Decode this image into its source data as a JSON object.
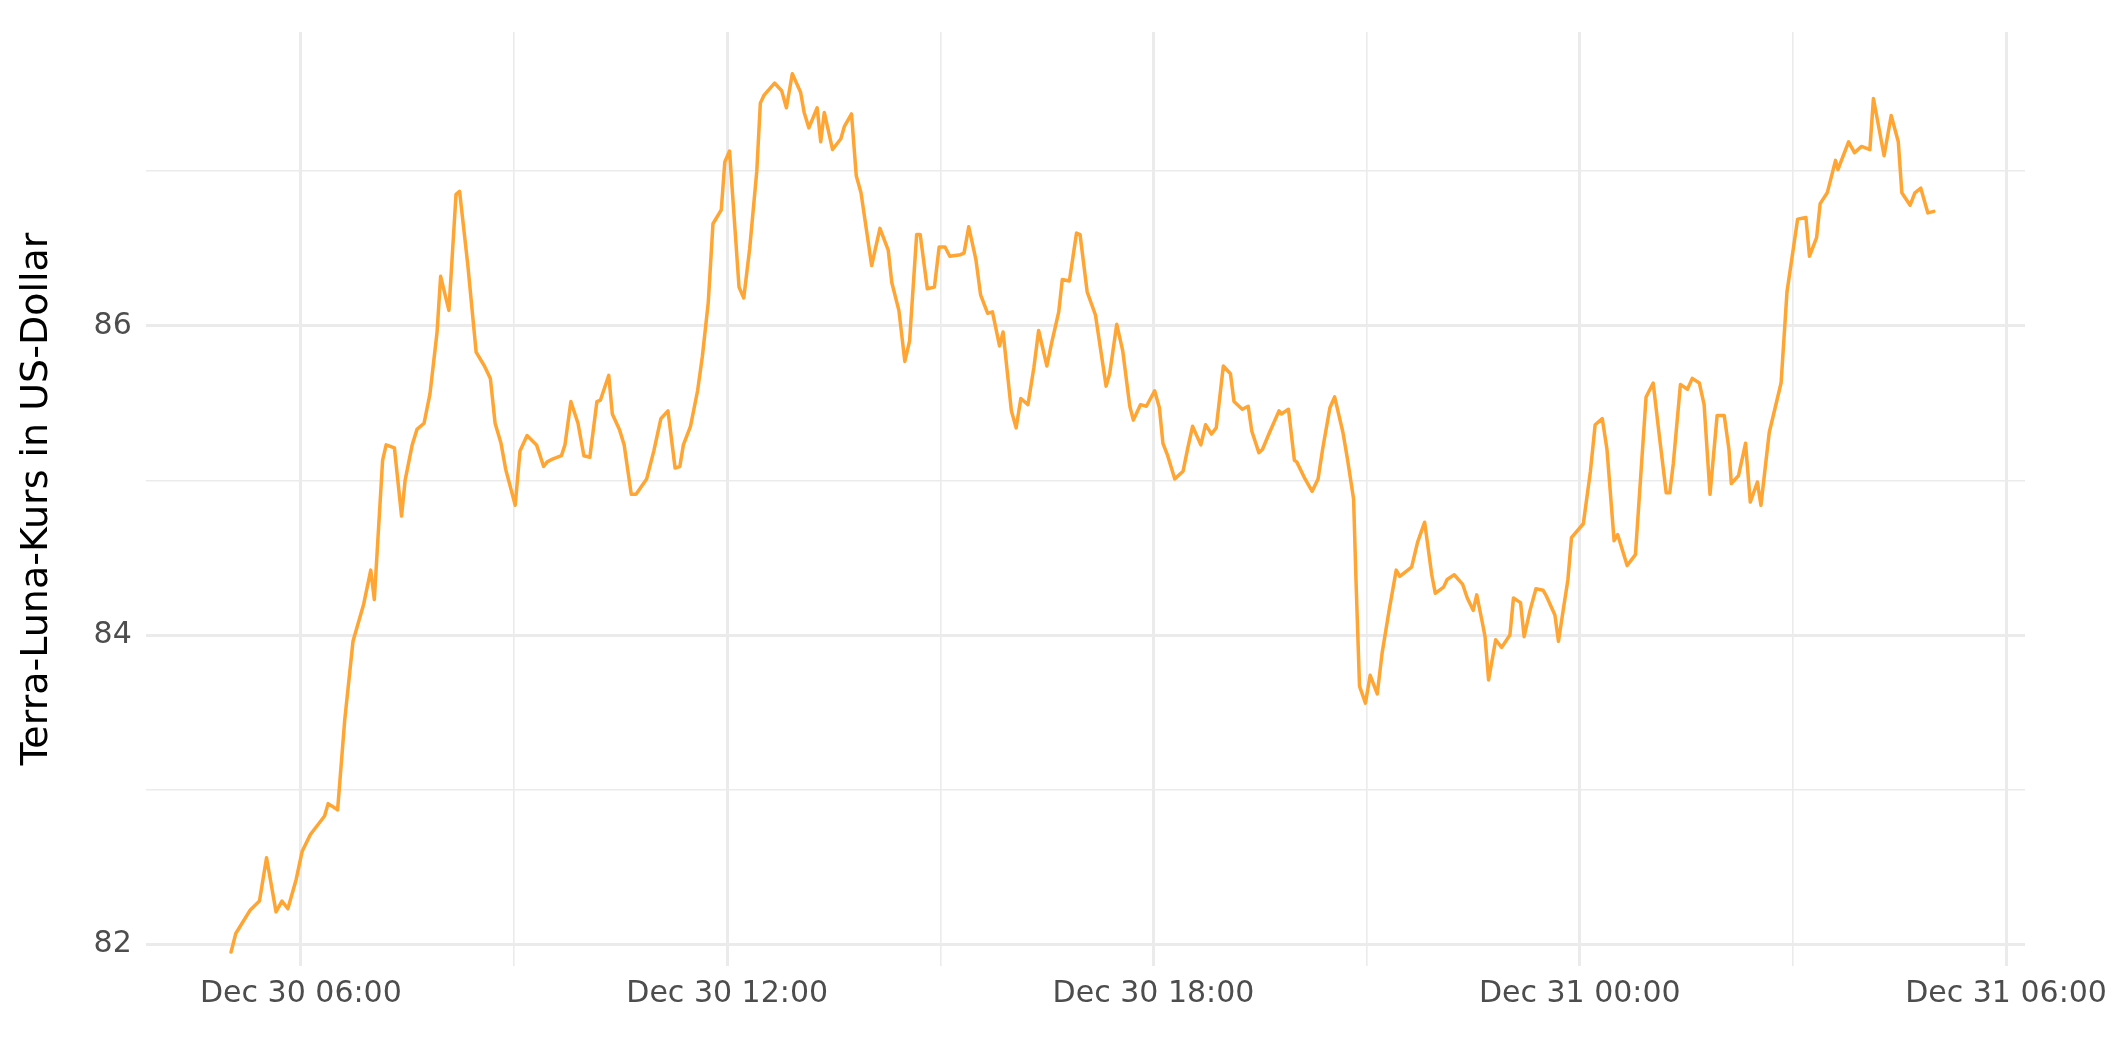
{
  "chart_data": {
    "type": "line",
    "ylabel": "Terra-Luna-Kurs in US-Dollar",
    "grid": true,
    "legend": false,
    "marker": "none",
    "line_style": "solid",
    "xlim": [
      "--12-30T03:49",
      "--12-31T06:16"
    ],
    "ylim": [
      81.86,
      87.9
    ],
    "xticks": [
      {
        "value": "--12-30T06:00",
        "label": "Dec 30 06:00"
      },
      {
        "value": "--12-30T09:00",
        "label": null
      },
      {
        "value": "--12-30T12:00",
        "label": "Dec 30 12:00"
      },
      {
        "value": "--12-30T15:00",
        "label": null
      },
      {
        "value": "--12-30T18:00",
        "label": "Dec 30 18:00"
      },
      {
        "value": "--12-30T21:00",
        "label": null
      },
      {
        "value": "--12-31T00:00",
        "label": "Dec 31 00:00"
      },
      {
        "value": "--12-31T03:00",
        "label": null
      },
      {
        "value": "--12-31T06:00",
        "label": "Dec 31 06:00"
      }
    ],
    "yticks": [
      82,
      {
        "value": 83,
        "label": null
      },
      84,
      {
        "value": 85,
        "label": null
      },
      86,
      {
        "value": 87,
        "label": null
      }
    ],
    "series": [
      {
        "color": "#ffa533",
        "x": [
          "--12-30T05:01",
          "--12-30T05:05",
          "--12-30T05:17",
          "--12-30T05:25",
          "--12-30T05:31",
          "--12-30T05:39",
          "--12-30T05:44",
          "--12-30T05:49",
          "--12-30T05:56",
          "--12-30T06:01",
          "--12-30T06:08",
          "--12-30T06:20",
          "--12-30T06:23",
          "--12-30T06:31",
          "--12-30T06:37",
          "--12-30T06:44",
          "--12-30T06:53",
          "--12-30T06:59",
          "--12-30T07:02",
          "--12-30T07:09",
          "--12-30T07:12",
          "--12-30T07:19",
          "--12-30T07:25",
          "--12-30T07:28",
          "--12-30T07:34",
          "--12-30T07:38",
          "--12-30T07:44",
          "--12-30T07:49",
          "--12-30T07:55",
          "--12-30T07:58",
          "--12-30T08:05",
          "--12-30T08:11",
          "--12-30T08:14",
          "--12-30T08:21",
          "--12-30T08:28",
          "--12-30T08:35",
          "--12-30T08:40",
          "--12-30T08:44",
          "--12-30T08:49",
          "--12-30T08:53",
          "--12-30T09:01",
          "--12-30T09:05",
          "--12-30T09:11",
          "--12-30T09:19",
          "--12-30T09:25",
          "--12-30T09:28",
          "--12-30T09:33",
          "--12-30T09:40",
          "--12-30T09:43",
          "--12-30T09:48",
          "--12-30T09:54",
          "--12-30T09:59",
          "--12-30T10:04",
          "--12-30T10:10",
          "--12-30T10:13",
          "--12-30T10:20",
          "--12-30T10:23",
          "--12-30T10:29",
          "--12-30T10:33",
          "--12-30T10:39",
          "--12-30T10:43",
          "--12-30T10:52",
          "--12-30T10:58",
          "--12-30T11:04",
          "--12-30T11:10",
          "--12-30T11:16",
          "--12-30T11:20",
          "--12-30T11:23",
          "--12-30T11:29",
          "--12-30T11:35",
          "--12-30T11:39",
          "--12-30T11:44",
          "--12-30T11:48",
          "--12-30T11:55",
          "--12-30T11:58",
          "--12-30T12:02",
          "--12-30T12:10",
          "--12-30T12:14",
          "--12-30T12:19",
          "--12-30T12:25",
          "--12-30T12:28",
          "--12-30T12:31",
          "--12-30T12:40",
          "--12-30T12:46",
          "--12-30T12:50",
          "--12-30T12:55",
          "--12-30T13:02",
          "--12-30T13:05",
          "--12-30T13:09",
          "--12-30T13:16",
          "--12-30T13:19",
          "--12-30T13:22",
          "--12-30T13:29",
          "--12-30T13:36",
          "--12-30T13:39",
          "--12-30T13:45",
          "--12-30T13:49",
          "--12-30T13:53",
          "--12-30T14:02",
          "--12-30T14:09",
          "--12-30T14:16",
          "--12-30T14:19",
          "--12-30T14:25",
          "--12-30T14:30",
          "--12-30T14:34",
          "--12-30T14:40",
          "--12-30T14:43",
          "--12-30T14:49",
          "--12-30T14:55",
          "--12-30T14:59",
          "--12-30T15:04",
          "--12-30T15:08",
          "--12-30T15:17",
          "--12-30T15:20",
          "--12-30T15:24",
          "--12-30T15:30",
          "--12-30T15:34",
          "--12-30T15:40",
          "--12-30T15:44",
          "--12-30T15:50",
          "--12-30T15:53",
          "--12-30T16:00",
          "--12-30T16:04",
          "--12-30T16:08",
          "--12-30T16:14",
          "--12-30T16:19",
          "--12-30T16:23",
          "--12-30T16:30",
          "--12-30T16:34",
          "--12-30T16:40",
          "--12-30T16:43",
          "--12-30T16:49",
          "--12-30T16:55",
          "--12-30T16:58",
          "--12-30T17:04",
          "--12-30T17:11",
          "--12-30T17:20",
          "--12-30T17:23",
          "--12-30T17:29",
          "--12-30T17:34",
          "--12-30T17:40",
          "--12-30T17:43",
          "--12-30T17:49",
          "--12-30T17:54",
          "--12-30T18:01",
          "--12-30T18:05",
          "--12-30T18:08",
          "--12-30T18:12",
          "--12-30T18:18",
          "--12-30T18:25",
          "--12-30T18:29",
          "--12-30T18:33",
          "--12-30T18:40",
          "--12-30T18:44",
          "--12-30T18:49",
          "--12-30T18:53",
          "--12-30T18:59",
          "--12-30T19:05",
          "--12-30T19:08",
          "--12-30T19:15",
          "--12-30T19:20",
          "--12-30T19:23",
          "--12-30T19:29",
          "--12-30T19:32",
          "--12-30T19:38",
          "--12-30T19:46",
          "--12-30T19:48",
          "--12-30T19:54",
          "--12-30T19:59",
          "--12-30T20:01",
          "--12-30T20:08",
          "--12-30T20:14",
          "--12-30T20:19",
          "--12-30T20:23",
          "--12-30T20:29",
          "--12-30T20:33",
          "--12-30T20:40",
          "--12-30T20:44",
          "--12-30T20:49",
          "--12-30T20:51",
          "--12-30T20:54",
          "--12-30T20:59",
          "--12-30T21:03",
          "--12-30T21:09",
          "--12-30T21:13",
          "--12-30T21:19",
          "--12-30T21:25",
          "--12-30T21:28",
          "--12-30T21:38",
          "--12-30T21:43",
          "--12-30T21:49",
          "--12-30T21:55",
          "--12-30T21:58",
          "--12-30T22:05",
          "--12-30T22:08",
          "--12-30T22:14",
          "--12-30T22:21",
          "--12-30T22:25",
          "--12-30T22:30",
          "--12-30T22:33",
          "--12-30T22:38",
          "--12-30T22:40",
          "--12-30T22:43",
          "--12-30T22:49",
          "--12-30T22:54",
          "--12-30T23:01",
          "--12-30T23:04",
          "--12-30T23:10",
          "--12-30T23:13",
          "--12-30T23:18",
          "--12-30T23:23",
          "--12-30T23:29",
          "--12-30T23:32",
          "--12-30T23:39",
          "--12-30T23:42",
          "--12-30T23:46",
          "--12-30T23:50",
          "--12-30T23:53",
          "--12-31T00:03",
          "--12-31T00:09",
          "--12-31T00:13",
          "--12-31T00:19",
          "--12-31T00:23",
          "--12-31T00:29",
          "--12-31T00:32",
          "--12-31T00:40",
          "--12-31T00:47",
          "--12-31T00:56",
          "--12-31T01:02",
          "--12-31T01:07",
          "--12-31T01:13",
          "--12-31T01:16",
          "--12-31T01:19",
          "--12-31T01:25",
          "--12-31T01:31",
          "--12-31T01:35",
          "--12-31T01:41",
          "--12-31T01:45",
          "--12-31T01:50",
          "--12-31T01:56",
          "--12-31T02:02",
          "--12-31T02:06",
          "--12-31T02:08",
          "--12-31T02:14",
          "--12-31T02:20",
          "--12-31T02:24",
          "--12-31T02:30",
          "--12-31T02:33",
          "--12-31T02:40",
          "--12-31T02:50",
          "--12-31T02:55",
          "--12-31T03:04",
          "--12-31T03:11",
          "--12-31T03:14",
          "--12-31T03:20",
          "--12-31T03:23",
          "--12-31T03:29",
          "--12-31T03:36",
          "--12-31T03:38",
          "--12-31T03:47",
          "--12-31T03:52",
          "--12-31T03:58",
          "--12-31T04:05",
          "--12-31T04:08",
          "--12-31T04:17",
          "--12-31T04:23",
          "--12-31T04:29",
          "--12-31T04:32",
          "--12-31T04:39",
          "--12-31T04:43",
          "--12-31T04:48",
          "--12-31T04:54",
          "--12-31T04:59"
        ],
        "values": [
          81.95,
          82.07,
          82.22,
          82.28,
          82.56,
          82.21,
          82.28,
          82.23,
          82.42,
          82.6,
          82.71,
          82.83,
          82.91,
          82.87,
          83.45,
          83.96,
          84.2,
          84.42,
          84.23,
          85.13,
          85.23,
          85.21,
          84.77,
          85.0,
          85.23,
          85.33,
          85.37,
          85.56,
          85.96,
          86.32,
          86.1,
          86.85,
          86.87,
          86.39,
          85.83,
          85.74,
          85.66,
          85.37,
          85.24,
          85.07,
          84.84,
          85.19,
          85.29,
          85.23,
          85.09,
          85.12,
          85.14,
          85.16,
          85.23,
          85.51,
          85.37,
          85.16,
          85.15,
          85.51,
          85.52,
          85.68,
          85.43,
          85.33,
          85.23,
          84.91,
          84.91,
          85.01,
          85.19,
          85.4,
          85.45,
          85.08,
          85.09,
          85.23,
          85.35,
          85.58,
          85.8,
          86.15,
          86.66,
          86.75,
          87.06,
          87.13,
          86.25,
          86.18,
          86.5,
          87.0,
          87.44,
          87.49,
          87.57,
          87.52,
          87.41,
          87.63,
          87.51,
          87.38,
          87.28,
          87.41,
          87.19,
          87.38,
          87.14,
          87.21,
          87.29,
          87.37,
          86.97,
          86.86,
          86.39,
          86.63,
          86.49,
          86.28,
          86.1,
          85.77,
          85.9,
          86.59,
          86.59,
          86.24,
          86.25,
          86.51,
          86.51,
          86.45,
          86.46,
          86.47,
          86.64,
          86.43,
          86.2,
          86.08,
          86.09,
          85.87,
          85.96,
          85.45,
          85.34,
          85.53,
          85.49,
          85.73,
          85.97,
          85.74,
          85.89,
          86.09,
          86.3,
          86.29,
          86.6,
          86.59,
          86.22,
          86.07,
          85.61,
          85.69,
          86.01,
          85.84,
          85.48,
          85.39,
          85.49,
          85.48,
          85.58,
          85.47,
          85.24,
          85.16,
          85.01,
          85.06,
          85.21,
          85.35,
          85.23,
          85.36,
          85.3,
          85.34,
          85.74,
          85.69,
          85.51,
          85.46,
          85.48,
          85.32,
          85.18,
          85.2,
          85.31,
          85.45,
          85.43,
          85.46,
          85.13,
          85.12,
          85.01,
          84.93,
          85.01,
          85.21,
          85.47,
          85.54,
          85.31,
          85.13,
          84.88,
          84.36,
          83.67,
          83.56,
          83.74,
          83.62,
          83.88,
          84.16,
          84.42,
          84.38,
          84.44,
          84.6,
          84.73,
          84.39,
          84.27,
          84.31,
          84.36,
          84.39,
          84.33,
          84.24,
          84.16,
          84.26,
          84.07,
          83.99,
          83.71,
          83.97,
          83.92,
          84.0,
          84.24,
          84.21,
          83.99,
          84.16,
          84.3,
          84.29,
          84.25,
          84.13,
          83.96,
          84.16,
          84.36,
          84.63,
          84.72,
          85.06,
          85.36,
          85.4,
          85.2,
          84.61,
          84.65,
          84.45,
          84.52,
          85.54,
          85.63,
          85.3,
          84.92,
          84.92,
          85.11,
          85.62,
          85.59,
          85.66,
          85.63,
          85.49,
          84.91,
          85.42,
          85.42,
          85.2,
          84.98,
          85.03,
          85.24,
          84.86,
          84.99,
          84.84,
          85.31,
          85.63,
          86.22,
          86.69,
          86.7,
          86.45,
          86.57,
          86.79,
          86.86,
          87.07,
          87.01,
          87.19,
          87.12,
          87.16,
          87.14,
          87.47,
          87.1,
          87.36,
          87.19,
          86.86,
          86.78,
          86.86,
          86.89,
          86.73,
          86.74
        ]
      }
    ]
  }
}
